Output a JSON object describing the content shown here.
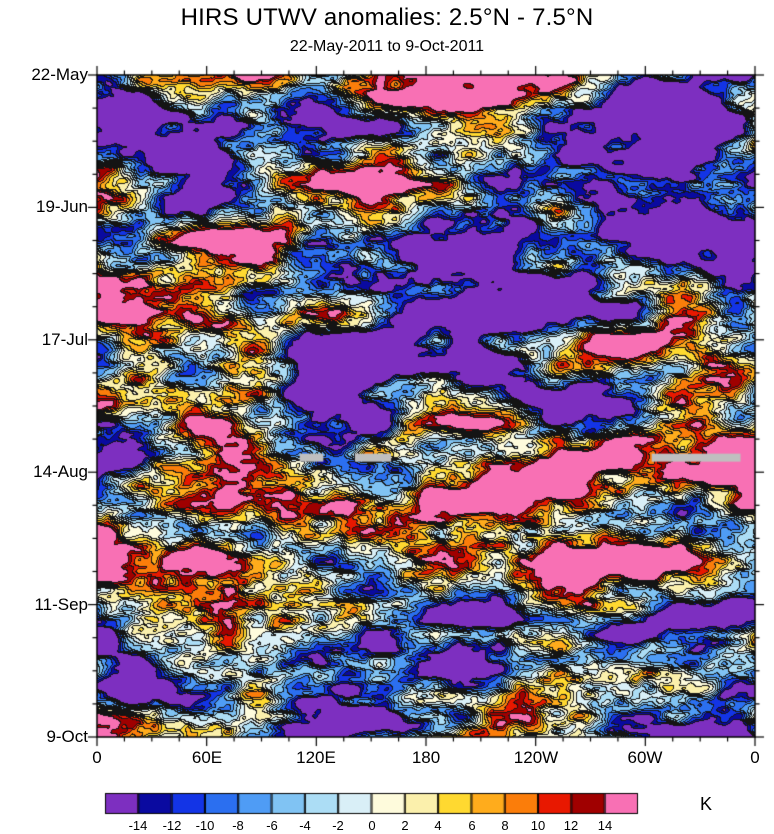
{
  "title": "HIRS UTWV anomalies: 2.5°N - 7.5°N",
  "subtitle": "22-May-2011 to 9-Oct-2011",
  "chart_data": {
    "type": "heatmap",
    "description": "Hovmöller (longitude-time) filled-contour diagram of HIRS upper-tropospheric water vapor brightness-temperature anomalies (K), 2.5N-7.5N, 22-May-2011 to 9-Oct-2011. Field is turbulent small-scale anomalies spanning roughly -14 K to +14 K with contour fill every 2 K.",
    "x_ticks": [
      "0",
      "60E",
      "120E",
      "180",
      "120W",
      "60W",
      "0"
    ],
    "x_range_deg": [
      0,
      360
    ],
    "y_ticks": [
      "22-May",
      "19-Jun",
      "17-Jul",
      "14-Aug",
      "11-Sep",
      "9-Oct"
    ],
    "time_range": [
      "22-May-2011",
      "9-Oct-2011"
    ],
    "units": "K",
    "levels": [
      -14,
      -12,
      -10,
      -8,
      -6,
      -4,
      -2,
      0,
      2,
      4,
      6,
      8,
      10,
      12,
      14
    ],
    "colors": [
      "#7D2FC0",
      "#0A0AA0",
      "#1334E6",
      "#2B6FF0",
      "#4F9CF5",
      "#80C3F3",
      "#ACDDF5",
      "#D9EFF7",
      "#FEFBDC",
      "#FBF0AC",
      "#FFD930",
      "#FFAC1C",
      "#FB7D0A",
      "#E81800",
      "#A00000",
      "#F870B4"
    ],
    "contour_line_color": "#141414",
    "missing_color": "#BFBFBF",
    "missing_data_segments_frac": {
      "y_frac": 0.578,
      "segments": [
        [
          0.308,
          0.344
        ],
        [
          0.392,
          0.447
        ],
        [
          0.843,
          0.978
        ]
      ]
    },
    "grid": false,
    "legend_position": "bottom-colorbar",
    "noise": {
      "seed": 12345,
      "amplitude": 52
    }
  },
  "colorbar": {
    "tick_labels": [
      "-14",
      "-12",
      "-10",
      "-8",
      "-6",
      "-4",
      "-2",
      "0",
      "2",
      "4",
      "6",
      "8",
      "10",
      "12",
      "14"
    ],
    "unit_label": "K"
  }
}
